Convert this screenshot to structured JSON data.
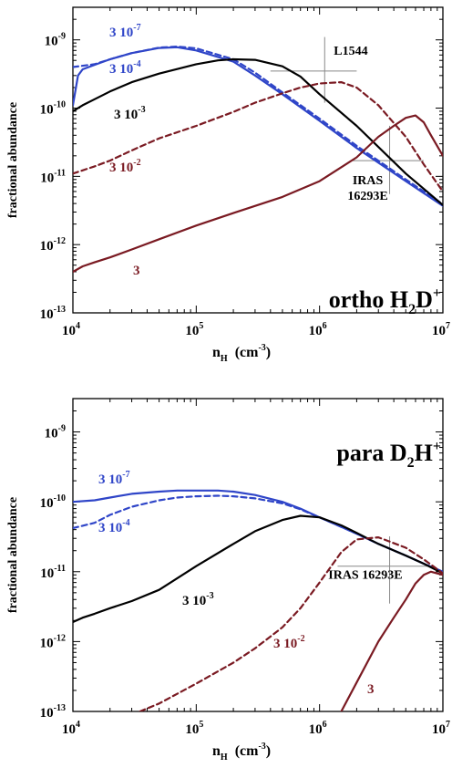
{
  "chart_data": [
    {
      "type": "line",
      "title": "ortho H2D+",
      "title_main": "ortho H",
      "title_sub": "2",
      "title_mid": "D",
      "title_sup": "+",
      "xlabel": "n",
      "xlabel_sub": "H",
      "xlabel_units": "(cm",
      "xlabel_units_sup": "-3",
      "xlabel_units_close": ")",
      "ylabel": "fractional abundance",
      "xscale": "log",
      "yscale": "log",
      "xlim": [
        10000,
        10000000
      ],
      "ylim": [
        1e-13,
        3e-09
      ],
      "xticks": [
        {
          "base": "10",
          "exp": "4",
          "value": 10000
        },
        {
          "base": "10",
          "exp": "5",
          "value": 100000
        },
        {
          "base": "10",
          "exp": "6",
          "value": 1000000
        },
        {
          "base": "10",
          "exp": "7",
          "value": 10000000
        }
      ],
      "yticks": [
        {
          "base": "10",
          "exp": "-9",
          "value": 1e-09
        },
        {
          "base": "10",
          "exp": "-10",
          "value": 1e-10
        },
        {
          "base": "10",
          "exp": "-11",
          "value": 1e-11
        },
        {
          "base": "10",
          "exp": "-12",
          "value": 1e-12
        },
        {
          "base": "10",
          "exp": "-13",
          "value": 1e-13
        }
      ],
      "series": [
        {
          "label_base": "3 10",
          "label_exp": "-7",
          "color": "#2f45c8",
          "dash": "solid",
          "x": [
            10000,
            11000,
            12000,
            15000,
            20000,
            30000,
            50000,
            70000,
            100000,
            200000,
            300000,
            500000,
            1000000,
            2000000,
            5000000,
            10000000
          ],
          "y": [
            1.1e-10,
            3e-10,
            3.7e-10,
            4.3e-10,
            5.2e-10,
            6.4e-10,
            7.6e-10,
            7.8e-10,
            7e-10,
            4.8e-10,
            3e-10,
            1.6e-10,
            6.5e-11,
            2.6e-11,
            8.5e-12,
            3.7e-12
          ]
        },
        {
          "label_base": "3 10",
          "label_exp": "-4",
          "color": "#2f45c8",
          "dash": "dashed",
          "x": [
            10000,
            15000,
            20000,
            30000,
            50000,
            70000,
            100000,
            200000,
            300000,
            500000,
            1000000,
            2000000,
            5000000,
            10000000
          ],
          "y": [
            4e-10,
            4.4e-10,
            5.2e-10,
            6.4e-10,
            7.7e-10,
            8e-10,
            7.5e-10,
            5.2e-10,
            3.3e-10,
            1.7e-10,
            7e-11,
            2.8e-11,
            9e-12,
            3.9e-12
          ]
        },
        {
          "label_base": "3 10",
          "label_exp": "-3",
          "color": "#000000",
          "dash": "solid",
          "x": [
            10000,
            12000,
            15000,
            20000,
            30000,
            50000,
            100000,
            150000,
            200000,
            300000,
            500000,
            700000,
            1000000,
            2000000,
            5000000,
            10000000
          ],
          "y": [
            9e-11,
            1.1e-10,
            1.35e-10,
            1.75e-10,
            2.4e-10,
            3.2e-10,
            4.4e-10,
            5e-10,
            5.2e-10,
            5.1e-10,
            4.1e-10,
            2.9e-10,
            1.6e-10,
            5.5e-11,
            1.1e-11,
            3.8e-12
          ]
        },
        {
          "label_base": "3 10",
          "label_exp": "-2",
          "color": "#7a1a22",
          "dash": "dashed",
          "x": [
            10000,
            15000,
            20000,
            30000,
            50000,
            100000,
            200000,
            300000,
            500000,
            700000,
            1000000,
            1500000,
            2000000,
            3000000,
            5000000,
            7000000,
            10000000
          ],
          "y": [
            1.1e-11,
            1.4e-11,
            1.7e-11,
            2.4e-11,
            3.6e-11,
            5.5e-11,
            8.8e-11,
            1.2e-10,
            1.65e-10,
            2e-10,
            2.3e-10,
            2.4e-10,
            2e-10,
            1.1e-10,
            3.8e-11,
            1.5e-11,
            6e-12
          ]
        },
        {
          "label_base": "3",
          "label_exp": "",
          "color": "#7a1a22",
          "dash": "solid",
          "x": [
            10000,
            12000,
            15000,
            20000,
            30000,
            50000,
            100000,
            200000,
            500000,
            1000000,
            2000000,
            3000000,
            4000000,
            5000000,
            6000000,
            7000000,
            8000000,
            10000000
          ],
          "y": [
            4e-13,
            4.8e-13,
            5.5e-13,
            6.5e-13,
            8.5e-13,
            1.2e-12,
            1.9e-12,
            2.9e-12,
            5e-12,
            8.5e-12,
            1.9e-11,
            3.8e-11,
            5.5e-11,
            7.2e-11,
            7.8e-11,
            6.2e-11,
            4e-11,
            2e-11
          ]
        }
      ],
      "annotations": [
        {
          "text": "L1544",
          "lines": [
            "L1544"
          ],
          "x": 1100000,
          "y": 3.5e-10
        },
        {
          "text": "IRAS 16293E",
          "lines": [
            "IRAS",
            "16293E"
          ],
          "x": 3700000,
          "y": 1.7e-11
        }
      ],
      "errorbars": [
        {
          "x": 1100000,
          "y": 3.5e-10,
          "xmin": 400000,
          "xmax": 2000000,
          "ymin": 1.2e-10,
          "ymax": 1.1e-09
        },
        {
          "x": 3700000,
          "y": 1.7e-11,
          "xmin": 1800000,
          "xmax": 7000000,
          "ymin": 5.5e-12,
          "ymax": 5.5e-11
        }
      ]
    },
    {
      "type": "line",
      "title": "para D2H+",
      "title_main": "para D",
      "title_sub": "2",
      "title_mid": "H",
      "title_sup": "+",
      "xlabel": "n",
      "xlabel_sub": "H",
      "xlabel_units": "(cm",
      "xlabel_units_sup": "-3",
      "xlabel_units_close": ")",
      "ylabel": "fractional abundance",
      "xscale": "log",
      "yscale": "log",
      "xlim": [
        10000,
        10000000
      ],
      "ylim": [
        1e-13,
        3e-09
      ],
      "xticks": [
        {
          "base": "10",
          "exp": "4",
          "value": 10000
        },
        {
          "base": "10",
          "exp": "5",
          "value": 100000
        },
        {
          "base": "10",
          "exp": "6",
          "value": 1000000
        },
        {
          "base": "10",
          "exp": "7",
          "value": 10000000
        }
      ],
      "yticks": [
        {
          "base": "10",
          "exp": "-9",
          "value": 1e-09
        },
        {
          "base": "10",
          "exp": "-10",
          "value": 1e-10
        },
        {
          "base": "10",
          "exp": "-11",
          "value": 1e-11
        },
        {
          "base": "10",
          "exp": "-12",
          "value": 1e-12
        },
        {
          "base": "10",
          "exp": "-13",
          "value": 1e-13
        }
      ],
      "series": [
        {
          "label_base": "3 10",
          "label_exp": "-7",
          "color": "#2f45c8",
          "dash": "solid",
          "x": [
            10000,
            15000,
            20000,
            30000,
            50000,
            70000,
            100000,
            150000,
            200000,
            300000,
            500000,
            700000,
            1000000,
            2000000,
            3000000,
            5000000,
            7000000,
            10000000
          ],
          "y": [
            1e-10,
            1.05e-10,
            1.15e-10,
            1.3e-10,
            1.4e-10,
            1.45e-10,
            1.45e-10,
            1.45e-10,
            1.4e-10,
            1.25e-10,
            1e-10,
            8e-11,
            6e-11,
            3.5e-11,
            2.5e-11,
            1.7e-11,
            1.3e-11,
            1e-11
          ]
        },
        {
          "label_base": "3 10",
          "label_exp": "-4",
          "color": "#2f45c8",
          "dash": "dashed",
          "x": [
            10000,
            15000,
            20000,
            30000,
            50000,
            70000,
            100000,
            150000,
            200000,
            300000,
            500000,
            700000,
            1000000,
            2000000,
            3000000,
            5000000,
            7000000,
            10000000
          ],
          "y": [
            4.2e-11,
            5e-11,
            6.5e-11,
            8.5e-11,
            1.05e-10,
            1.15e-10,
            1.2e-10,
            1.22e-10,
            1.2e-10,
            1.12e-10,
            9.5e-11,
            7.8e-11,
            6e-11,
            3.5e-11,
            2.5e-11,
            1.7e-11,
            1.3e-11,
            1e-11
          ]
        },
        {
          "label_base": "3 10",
          "label_exp": "-3",
          "color": "#000000",
          "dash": "solid",
          "x": [
            10000,
            12000,
            15000,
            20000,
            30000,
            50000,
            100000,
            200000,
            300000,
            500000,
            700000,
            1000000,
            1500000,
            2000000,
            3000000,
            5000000,
            7000000,
            10000000
          ],
          "y": [
            1.9e-12,
            2.2e-12,
            2.5e-12,
            3e-12,
            3.8e-12,
            5.5e-12,
            1.2e-11,
            2.5e-11,
            3.8e-11,
            5.5e-11,
            6.3e-11,
            6e-11,
            4.6e-11,
            3.6e-11,
            2.5e-11,
            1.7e-11,
            1.3e-11,
            9.5e-12
          ]
        },
        {
          "label_base": "3 10",
          "label_exp": "-2",
          "color": "#7a1a22",
          "dash": "dashed",
          "x": [
            35000,
            50000,
            100000,
            200000,
            300000,
            500000,
            700000,
            1000000,
            1500000,
            2000000,
            3000000,
            5000000,
            7000000,
            10000000
          ],
          "y": [
            1e-13,
            1.3e-13,
            2.5e-13,
            5e-13,
            8e-13,
            1.6e-12,
            3e-12,
            7e-12,
            1.9e-11,
            2.9e-11,
            3.1e-11,
            2.2e-11,
            1.5e-11,
            9.5e-12
          ]
        },
        {
          "label_base": "3",
          "label_exp": "",
          "color": "#7a1a22",
          "dash": "solid",
          "x": [
            1500000,
            2000000,
            3000000,
            4000000,
            5000000,
            6000000,
            7000000,
            8000000,
            10000000
          ],
          "y": [
            1e-13,
            2.6e-13,
            1e-12,
            2.2e-12,
            4e-12,
            6.8e-12,
            9e-12,
            1e-11,
            9e-12
          ]
        }
      ],
      "annotations": [
        {
          "text": "IRAS 16293E",
          "lines": [
            "IRAS 16293E"
          ],
          "x": 3700000,
          "y": 1.2e-11
        }
      ],
      "errorbars": [
        {
          "x": 3700000,
          "y": 1.2e-11,
          "xmin": 1400000,
          "xmax": 7500000,
          "ymin": 3.5e-12,
          "ymax": 3.2e-11
        }
      ]
    }
  ]
}
